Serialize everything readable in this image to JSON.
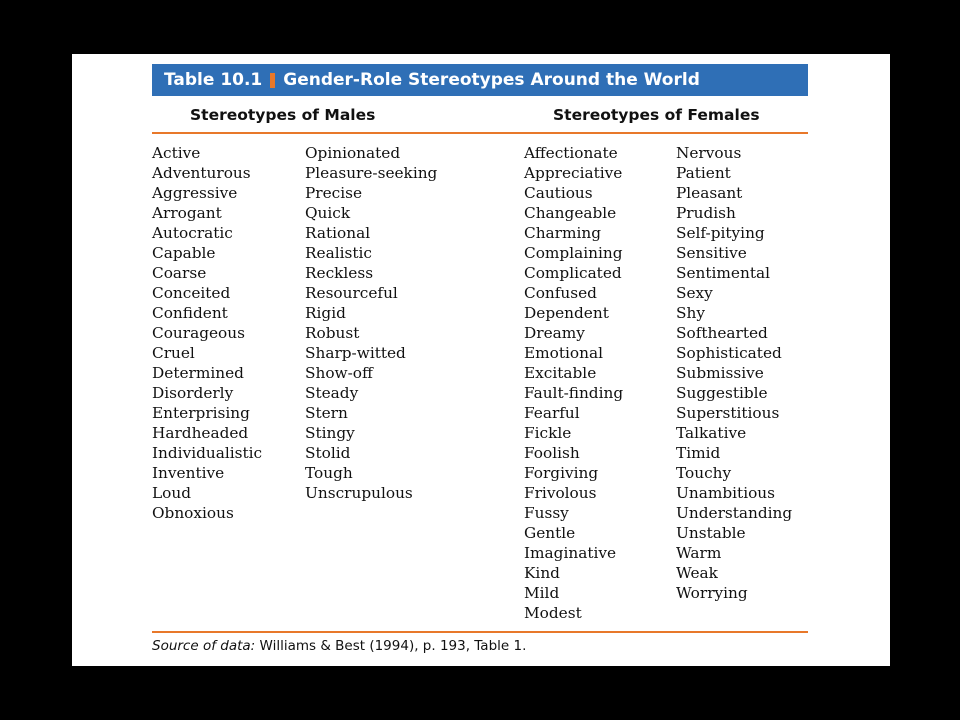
{
  "table": {
    "number": "Table 10.1",
    "title": "Gender-Role Stereotypes Around the World",
    "header_male": "Stereotypes of Males",
    "header_female": "Stereotypes of Females",
    "males_col1": [
      "Active",
      "Adventurous",
      "Aggressive",
      "Arrogant",
      "Autocratic",
      "Capable",
      "Coarse",
      "Conceited",
      "Confident",
      "Courageous",
      "Cruel",
      "Determined",
      "Disorderly",
      "Enterprising",
      "Hardheaded",
      "Individualistic",
      "Inventive",
      "Loud",
      "Obnoxious"
    ],
    "males_col2": [
      "Opinionated",
      "Pleasure-seeking",
      "Precise",
      "Quick",
      "Rational",
      "Realistic",
      "Reckless",
      "Resourceful",
      "Rigid",
      "Robust",
      "Sharp-witted",
      "Show-off",
      "Steady",
      "Stern",
      "Stingy",
      "Stolid",
      "Tough",
      "Unscrupulous"
    ],
    "females_col1": [
      "Affectionate",
      "Appreciative",
      "Cautious",
      "Changeable",
      "Charming",
      "Complaining",
      "Complicated",
      "Confused",
      "Dependent",
      "Dreamy",
      "Emotional",
      "Excitable",
      "Fault-finding",
      "Fearful",
      "Fickle",
      "Foolish",
      "Forgiving",
      "Frivolous",
      "Fussy",
      "Gentle",
      "Imaginative",
      "Kind",
      "Mild",
      "Modest"
    ],
    "females_col2": [
      "Nervous",
      "Patient",
      "Pleasant",
      "Prudish",
      "Self-pitying",
      "Sensitive",
      "Sentimental",
      "Sexy",
      "Shy",
      "Softhearted",
      "Sophisticated",
      "Submissive",
      "Suggestible",
      "Superstitious",
      "Talkative",
      "Timid",
      "Touchy",
      "Unambitious",
      "Understanding",
      "Unstable",
      "Warm",
      "Weak",
      "Worrying"
    ],
    "source_label": "Source of data:",
    "source_text": "Williams & Best (1994), p. 193, Table 1."
  },
  "colors": {
    "title_bar": "#2f6fb6",
    "accent": "#e8782a",
    "background": "#000000"
  }
}
